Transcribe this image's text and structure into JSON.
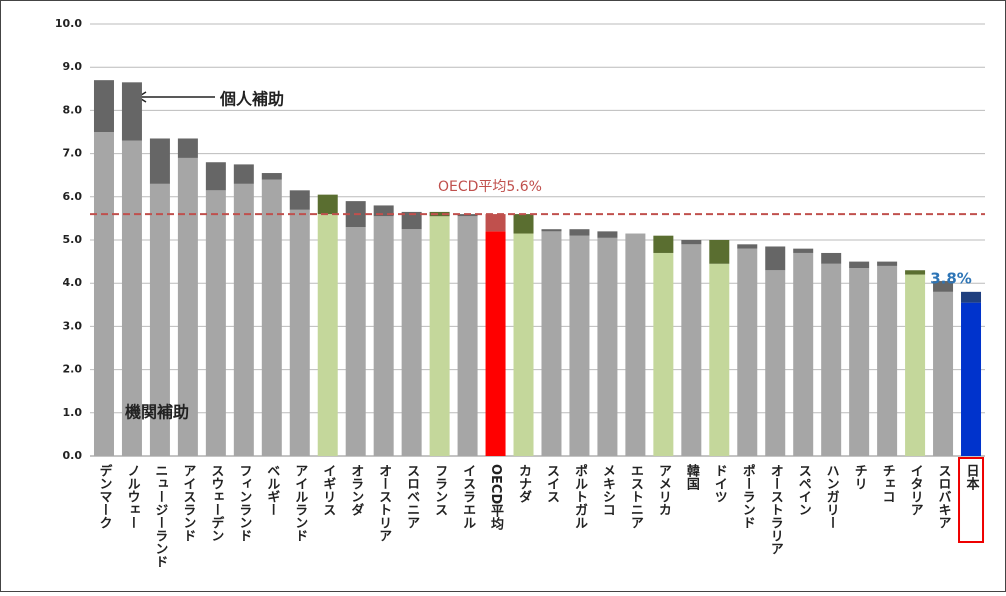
{
  "chart_data": {
    "type": "stacked_bar",
    "categories": [
      "デンマーク",
      "ノルウェー",
      "ニュージーランド",
      "アイスランド",
      "スウェーデン",
      "フィンランド",
      "ベルギー",
      "アイルランド",
      "イギリス",
      "オランダ",
      "オーストリア",
      "スロベニア",
      "フランス",
      "イスラエル",
      "OECD平均",
      "カナダ",
      "スイス",
      "ポルトガル",
      "メキシコ",
      "エストニア",
      "アメリカ",
      "韓国",
      "ドイツ",
      "ポーランド",
      "オーストラリア",
      "スペイン",
      "ハンガリー",
      "チリ",
      "チェコ",
      "イタリア",
      "スロバキア",
      "日本"
    ],
    "series": [
      {
        "name": "機関補助",
        "color": "#a6a6a6",
        "values": [
          7.5,
          7.3,
          6.3,
          6.9,
          6.15,
          6.3,
          6.4,
          5.7,
          5.6,
          5.3,
          5.55,
          5.25,
          5.55,
          5.55,
          5.2,
          5.15,
          5.2,
          5.1,
          5.05,
          5.15,
          4.7,
          4.9,
          4.45,
          4.8,
          4.3,
          4.7,
          4.45,
          4.35,
          4.4,
          4.2,
          3.8,
          3.55
        ],
        "colors": [
          "#a6a6a6",
          "#a6a6a6",
          "#a6a6a6",
          "#a6a6a6",
          "#a6a6a6",
          "#a6a6a6",
          "#a6a6a6",
          "#a6a6a6",
          "#c4d79b",
          "#a6a6a6",
          "#a6a6a6",
          "#a6a6a6",
          "#c4d79b",
          "#a6a6a6",
          "#ff0000",
          "#c4d79b",
          "#a6a6a6",
          "#a6a6a6",
          "#a6a6a6",
          "#a6a6a6",
          "#c4d79b",
          "#a6a6a6",
          "#c4d79b",
          "#a6a6a6",
          "#a6a6a6",
          "#a6a6a6",
          "#a6a6a6",
          "#a6a6a6",
          "#a6a6a6",
          "#c4d79b",
          "#a6a6a6",
          "#0033cc"
        ]
      },
      {
        "name": "個人補助",
        "color": "#666666",
        "values": [
          1.2,
          1.35,
          1.05,
          0.45,
          0.65,
          0.45,
          0.15,
          0.45,
          0.45,
          0.6,
          0.25,
          0.4,
          0.1,
          0.05,
          0.4,
          0.45,
          0.05,
          0.15,
          0.15,
          0,
          0.4,
          0.1,
          0.55,
          0.1,
          0.55,
          0.1,
          0.25,
          0.15,
          0.1,
          0.1,
          0.25,
          0.25
        ],
        "colors": [
          "#666666",
          "#666666",
          "#666666",
          "#666666",
          "#666666",
          "#666666",
          "#666666",
          "#666666",
          "#5a6e30",
          "#666666",
          "#666666",
          "#666666",
          "#5a6e30",
          "#666666",
          "#c0504d",
          "#5a6e30",
          "#666666",
          "#666666",
          "#666666",
          "#666666",
          "#5a6e30",
          "#666666",
          "#5a6e30",
          "#666666",
          "#666666",
          "#666666",
          "#666666",
          "#666666",
          "#666666",
          "#5a6e30",
          "#666666",
          "#1f3f7f"
        ]
      }
    ],
    "ylim": [
      0,
      10
    ],
    "yticks": [
      {
        "value": 0,
        "label": "0.0"
      },
      {
        "value": 1,
        "label": "1.0"
      },
      {
        "value": 2,
        "label": "2.0"
      },
      {
        "value": 3,
        "label": "3.0"
      },
      {
        "value": 4,
        "label": "4.0"
      },
      {
        "value": 5,
        "label": "5.0"
      },
      {
        "value": 6,
        "label": "6.0"
      },
      {
        "value": 7,
        "label": "7.0"
      },
      {
        "value": 8,
        "label": "8.0"
      },
      {
        "value": 9,
        "label": "9.0"
      },
      {
        "value": 10,
        "label": "10.0"
      }
    ],
    "grid": true,
    "reference_line": {
      "value": 5.6,
      "label": "OECD平均5.6%",
      "color": "#c0504d"
    },
    "annotations": [
      {
        "text": "3.8%",
        "category": "日本",
        "value": 3.8,
        "color": "#2e75b6"
      }
    ]
  }
}
